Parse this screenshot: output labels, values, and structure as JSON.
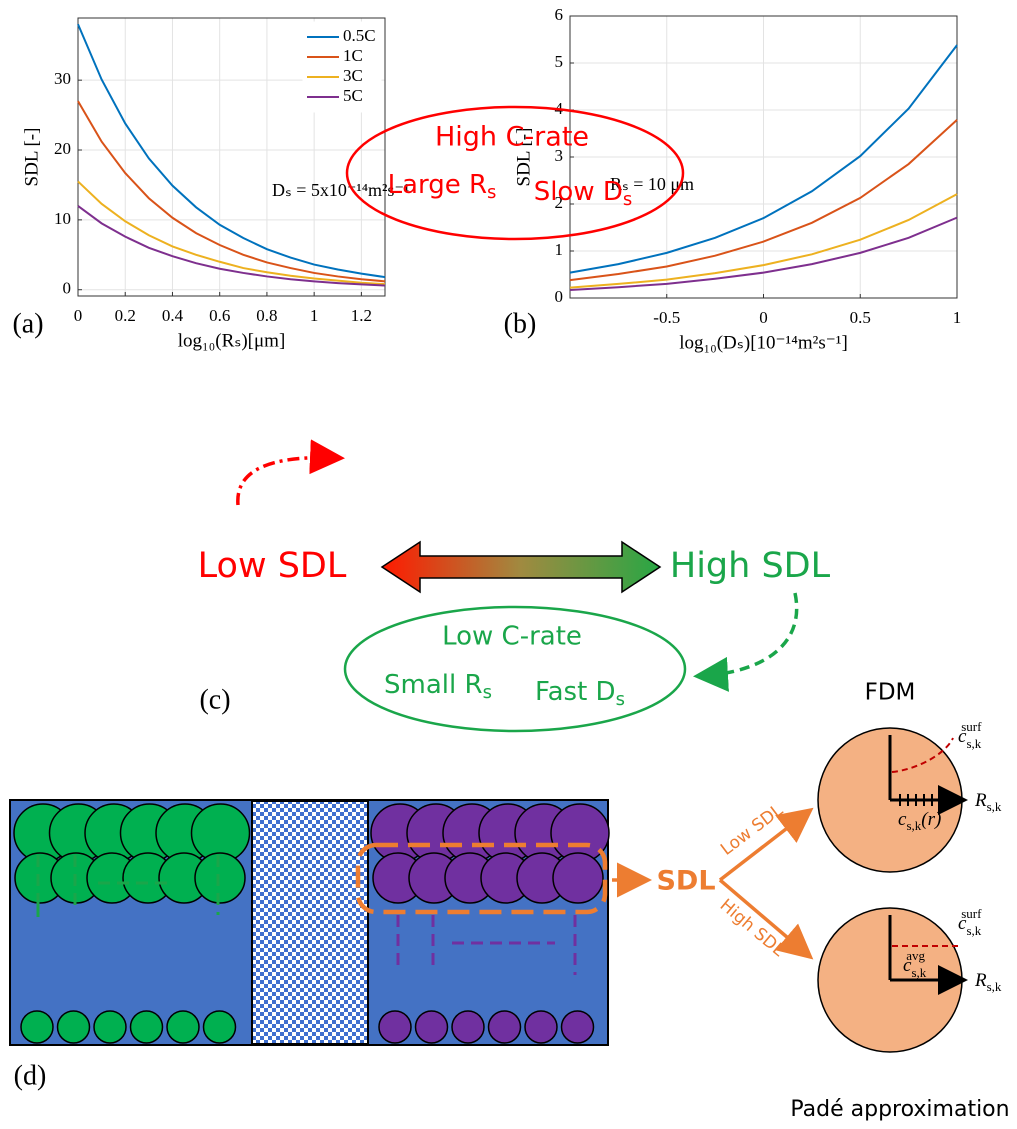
{
  "chart_data": [
    {
      "type": "line",
      "panel_label": "(a)",
      "xlabel": "log₁₀(Rₛ)[μm]",
      "ylabel": "SDL [-]",
      "annotation": "Dₛ = 5x10⁻¹⁴m²s⁻¹",
      "x": [
        0,
        0.1,
        0.2,
        0.3,
        0.4,
        0.5,
        0.6,
        0.7,
        0.8,
        0.9,
        1.0,
        1.1,
        1.2,
        1.3
      ],
      "series": [
        {
          "name": "0.5C",
          "color": "#0072bd",
          "values": [
            38,
            30.1,
            23.8,
            18.8,
            14.9,
            11.8,
            9.3,
            7.4,
            5.8,
            4.6,
            3.6,
            2.9,
            2.3,
            1.8
          ]
        },
        {
          "name": "1C",
          "color": "#d95319",
          "values": [
            27,
            21.2,
            16.7,
            13.1,
            10.3,
            8.1,
            6.4,
            5.0,
            3.9,
            3.1,
            2.4,
            1.9,
            1.5,
            1.2
          ]
        },
        {
          "name": "3C",
          "color": "#edb120",
          "values": [
            15.5,
            12.3,
            9.8,
            7.8,
            6.2,
            5.0,
            4.0,
            3.1,
            2.5,
            2.0,
            1.6,
            1.3,
            1.0,
            0.8
          ]
        },
        {
          "name": "5C",
          "color": "#7e2f8e",
          "values": [
            12,
            9.5,
            7.6,
            6.0,
            4.8,
            3.8,
            3.0,
            2.4,
            1.9,
            1.5,
            1.2,
            0.95,
            0.76,
            0.6
          ]
        }
      ],
      "xlim": [
        0,
        1.3
      ],
      "xticks": [
        0,
        0.2,
        0.4,
        0.6,
        0.8,
        1,
        1.2
      ],
      "ylim": [
        -0.9,
        38.9
      ],
      "yticks": [
        0,
        10,
        20,
        30
      ],
      "grid": true,
      "legend": "upper right"
    },
    {
      "type": "line",
      "panel_label": "(b)",
      "xlabel": "log₁₀(Dₛ)[10⁻¹⁴m²s⁻¹]",
      "ylabel": "SDL [-]",
      "annotation": "Rₛ = 10 μm",
      "x": [
        -1,
        -0.75,
        -0.5,
        -0.25,
        0,
        0.25,
        0.5,
        0.75,
        1
      ],
      "series": [
        {
          "name": "0.5C",
          "color": "#0072bd",
          "values": [
            0.54,
            0.72,
            0.96,
            1.28,
            1.7,
            2.27,
            3.02,
            4.03,
            5.38
          ]
        },
        {
          "name": "1C",
          "color": "#d95319",
          "values": [
            0.38,
            0.51,
            0.67,
            0.9,
            1.2,
            1.6,
            2.13,
            2.85,
            3.79
          ]
        },
        {
          "name": "3C",
          "color": "#edb120",
          "values": [
            0.22,
            0.3,
            0.39,
            0.53,
            0.7,
            0.93,
            1.24,
            1.66,
            2.21
          ]
        },
        {
          "name": "5C",
          "color": "#7e2f8e",
          "values": [
            0.17,
            0.23,
            0.3,
            0.41,
            0.54,
            0.72,
            0.96,
            1.28,
            1.71
          ]
        }
      ],
      "xlim": [
        -1,
        1
      ],
      "xticks": [
        -0.5,
        0,
        0.5,
        1
      ],
      "ylim": [
        0,
        6
      ],
      "yticks": [
        0,
        1,
        2,
        3,
        4,
        5,
        6
      ],
      "grid": true,
      "legend": null
    }
  ],
  "diagram": {
    "panel_c": {
      "label": "(c)",
      "low": "Low SDL",
      "high": "High SDL",
      "top": {
        "title": "High C-rate",
        "left": {
          "text": "Large R",
          "sub": "s"
        },
        "right": {
          "text": "Slow D",
          "sub": "s"
        }
      },
      "bottom": {
        "title": "Low C-rate",
        "left": {
          "text": "Small R",
          "sub": "s"
        },
        "right": {
          "text": "Fast D",
          "sub": "s"
        }
      }
    },
    "panel_d": {
      "label": "(d)",
      "center": "SDL",
      "branch_low": "Low SDL",
      "branch_high": "High SDL",
      "fdm": {
        "title": "FDM",
        "surf": {
          "symbol": "c",
          "sub": "s,k",
          "sup": "surf"
        },
        "radius": {
          "symbol": "R",
          "sub": "s,k"
        },
        "profile": {
          "symbol": "c",
          "sub": "s,k",
          "rest": "(r)"
        }
      },
      "pade": {
        "title": "Padé approximation",
        "surf": {
          "symbol": "c",
          "sub": "s,k",
          "sup": "surf"
        },
        "avg": {
          "symbol": "c",
          "sub": "s,k",
          "sup": "avg"
        },
        "radius": {
          "symbol": "R",
          "sub": "s,k"
        }
      }
    }
  }
}
